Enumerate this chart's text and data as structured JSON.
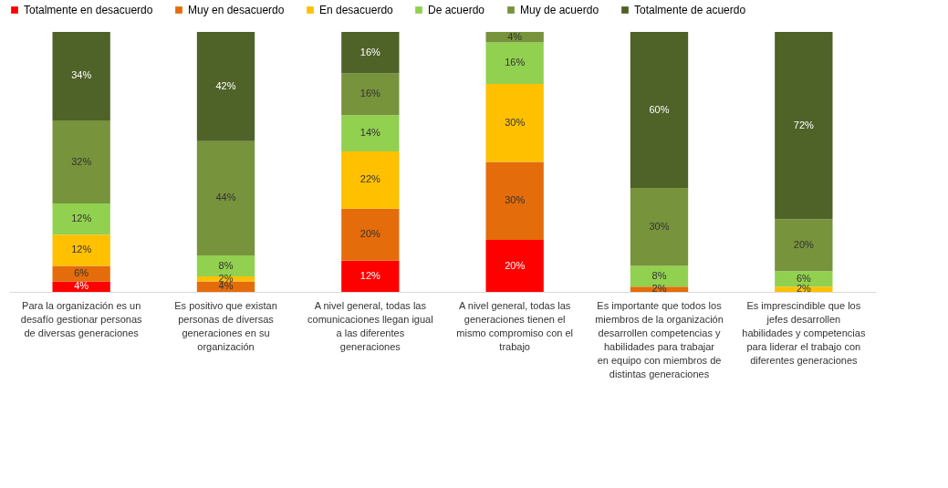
{
  "chart_data": {
    "type": "bar",
    "stacked": true,
    "legend": "top",
    "categories": [
      "Para la organización es un desafío gestionar personas de diversas generaciones",
      "Es positivo que existan personas de diversas generaciones en su organización",
      "A nivel general, todas las comunicaciones llegan igual a las diferentes generaciones",
      "A nivel general, todas las generaciones tienen el mismo compromiso con el trabajo",
      "Es importante que todos los miembros de la organización desarrollen competencias y habilidades para trabajar en equipo con miembros de distintas generaciones",
      "Es imprescindible que los jefes desarrollen habilidades y competencias para liderar el trabajo con diferentes generaciones"
    ],
    "series": [
      {
        "name": "Totalmente en desacuerdo",
        "color": "#ff0000",
        "values": [
          4,
          null,
          12,
          20,
          null,
          null
        ],
        "value_labels": [
          "4%",
          null,
          "12%",
          "20%",
          null,
          null
        ]
      },
      {
        "name": "Muy en desacuerdo",
        "color": "#e46c0a",
        "values": [
          6,
          4,
          20,
          30,
          2,
          null
        ],
        "value_labels": [
          "6%",
          "4%",
          "20%",
          "30%",
          "2%",
          null
        ]
      },
      {
        "name": "En desacuerdo",
        "color": "#ffc000",
        "values": [
          12,
          2,
          22,
          30,
          null,
          2
        ],
        "value_labels": [
          "12%",
          "2%",
          "22%",
          "30%",
          null,
          "2%"
        ]
      },
      {
        "name": "De acuerdo",
        "color": "#92d050",
        "values": [
          12,
          8,
          14,
          16,
          8,
          6
        ],
        "value_labels": [
          "12%",
          "8%",
          "14%",
          "16%",
          "8%",
          "6%"
        ]
      },
      {
        "name": "Muy de acuerdo",
        "color": "#77933c",
        "values": [
          32,
          44,
          16,
          4,
          30,
          20
        ],
        "value_labels": [
          "32%",
          "44%",
          "16%",
          "4%",
          "30%",
          "20%"
        ]
      },
      {
        "name": "Totalmente de acuerdo",
        "color": "#4f6228",
        "values": [
          34,
          42,
          16,
          null,
          60,
          72
        ],
        "value_labels": [
          "34%",
          "42%",
          "16%",
          null,
          "60%",
          "72%"
        ]
      }
    ]
  }
}
